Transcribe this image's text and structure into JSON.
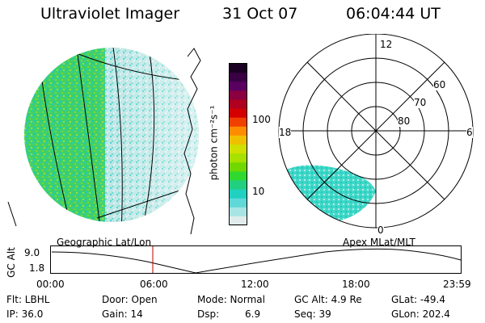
{
  "header": {
    "instrument": "Ultraviolet Imager",
    "date": "31 Oct 07",
    "time": "06:04:44 UT"
  },
  "colorbar": {
    "unit_label": "photon cm⁻²s⁻¹",
    "ticks": [
      "100",
      "10"
    ],
    "colors": [
      "#1a0022",
      "#3a0044",
      "#5a0060",
      "#8a0040",
      "#b00020",
      "#d40000",
      "#f04000",
      "#ff8c00",
      "#f0c000",
      "#d0e000",
      "#a8e000",
      "#70d800",
      "#30d830",
      "#20d080",
      "#20d0c0",
      "#60d8d8",
      "#a8e4e4",
      "#e0ecec"
    ]
  },
  "geo_map": {
    "label": "Geographic Lat/Lon"
  },
  "polar_plot": {
    "label": "Apex MLat/MLT",
    "mlt_labels": {
      "top": "12",
      "left": "18",
      "right": "6",
      "bottom": "0"
    },
    "lat_labels": [
      "60",
      "70",
      "80"
    ]
  },
  "altitude_strip": {
    "ylabel": "GC Alt",
    "ymax": "9.0",
    "ymin": "1.8",
    "x_ticks": [
      "00:00",
      "06:00",
      "12:00",
      "18:00",
      "23:59"
    ]
  },
  "info": {
    "filter": "Flt: LBHL",
    "ip": "IP: 36.0",
    "door": "Door: Open",
    "gain": "Gain: 14",
    "mode": "Mode: Normal",
    "dsp": "Dsp:",
    "dsp_value": "6.9",
    "gc_alt": "GC Alt: 4.9 Re",
    "seq": "Seq: 39",
    "glat": "GLat: -49.4",
    "glon": "GLon: 202.4"
  }
}
